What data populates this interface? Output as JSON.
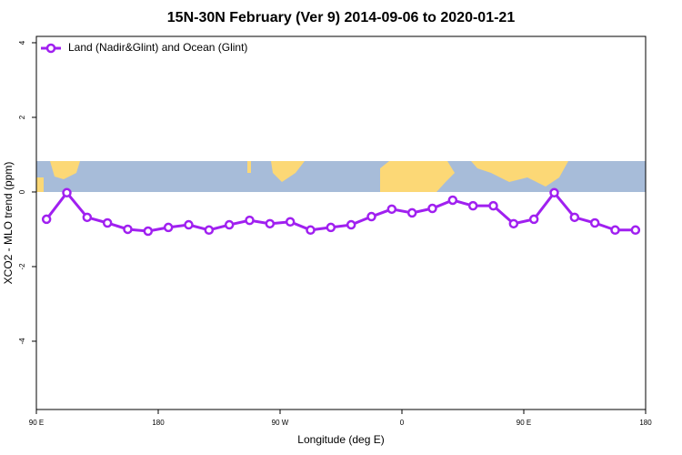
{
  "chart_data": {
    "type": "line",
    "title": "15N-30N February (Ver 9)   2014-09-06 to 2020-01-21",
    "x_label": "Longitude (deg E)",
    "y_label": "XCO2 - MLO trend (ppm)",
    "x": [
      97.5,
      112.5,
      127.5,
      142.5,
      157.5,
      172.5,
      187.5,
      202.5,
      217.5,
      232.5,
      247.5,
      262.5,
      277.5,
      292.5,
      307.5,
      322.5,
      337.5,
      352.5,
      367.5,
      382.5,
      397.5,
      412.5,
      427.5,
      442.5,
      457.5,
      472.5,
      487.5,
      502.5,
      517.5,
      532.5
    ],
    "series": [
      {
        "name": "Land (Nadir&Glint) and Ocean (Glint)",
        "color": "#a020f0",
        "values": [
          -0.73,
          -0.02,
          -0.68,
          -0.83,
          -1.0,
          -1.05,
          -0.95,
          -0.88,
          -1.02,
          -0.88,
          -0.76,
          -0.85,
          -0.8,
          -1.02,
          -0.95,
          -0.88,
          -0.66,
          -0.46,
          -0.56,
          -0.44,
          -0.22,
          -0.37,
          -0.37,
          -0.85,
          -0.73,
          -0.02,
          -0.68,
          -0.83,
          -1.02,
          -1.02
        ]
      }
    ],
    "xlim": [
      90,
      540
    ],
    "xticks": [
      {
        "value": 90,
        "label": "90 E"
      },
      180,
      {
        "value": 270,
        "label": "90 W"
      },
      {
        "value": 360,
        "label": "0"
      },
      {
        "value": 450,
        "label": "90 E"
      },
      {
        "value": 540,
        "label": "180"
      }
    ],
    "ylim": [
      -5.83,
      4.17
    ],
    "yticks": [
      -4,
      -2,
      0,
      2,
      4
    ],
    "legend": "top-left"
  }
}
